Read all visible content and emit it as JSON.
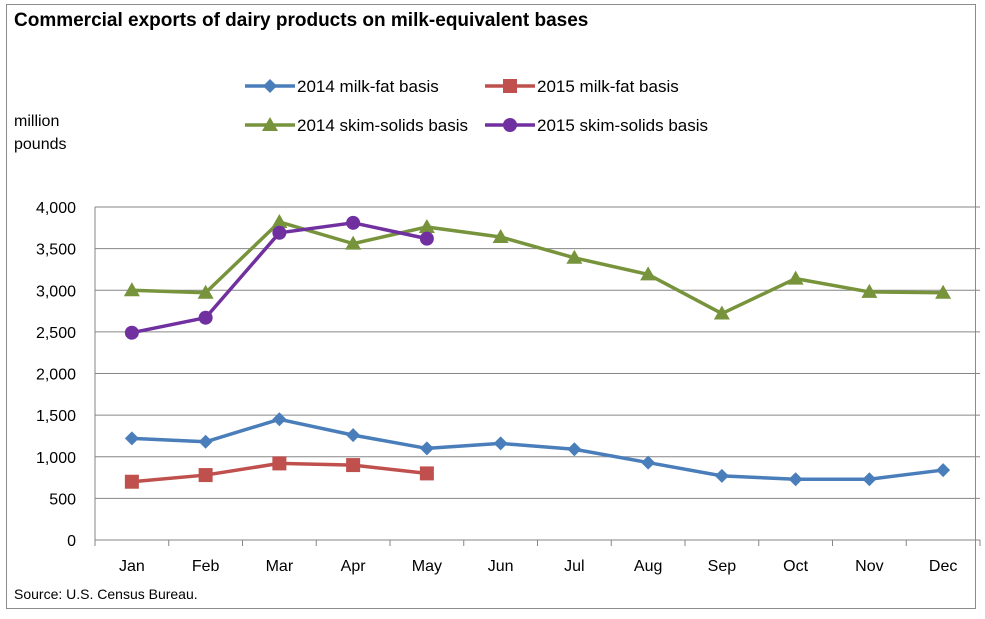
{
  "chart_data": {
    "type": "line",
    "title": "Commercial exports of dairy products on milk-equivalent bases",
    "ylabel_line1": "million",
    "ylabel_line2": "pounds",
    "source": "Source: U.S. Census Bureau.",
    "categories": [
      "Jan",
      "Feb",
      "Mar",
      "Apr",
      "May",
      "Jun",
      "Jul",
      "Aug",
      "Sep",
      "Oct",
      "Nov",
      "Dec"
    ],
    "ylim": [
      0,
      4000
    ],
    "yticks": [
      0,
      500,
      1000,
      1500,
      2000,
      2500,
      3000,
      3500,
      4000
    ],
    "ytick_labels": [
      "0",
      "500",
      "1,000",
      "1,500",
      "2,000",
      "2,500",
      "3,000",
      "3,500",
      "4,000"
    ],
    "grid": "horizontal",
    "legend_position": "top",
    "series": [
      {
        "name": "2014 milk-fat basis",
        "color": "#4a7ebb",
        "marker": "diamond",
        "values": [
          1220,
          1180,
          1450,
          1260,
          1100,
          1160,
          1090,
          930,
          770,
          730,
          730,
          840
        ]
      },
      {
        "name": "2015 milk-fat basis",
        "color": "#c0504d",
        "marker": "square",
        "values": [
          700,
          780,
          920,
          900,
          800,
          null,
          null,
          null,
          null,
          null,
          null,
          null
        ]
      },
      {
        "name": "2014 skim-solids basis",
        "color": "#77933c",
        "marker": "triangle",
        "values": [
          3000,
          2970,
          3820,
          3560,
          3760,
          3640,
          3390,
          3190,
          2720,
          3140,
          2980,
          2970
        ]
      },
      {
        "name": "2015 skim-solids basis",
        "color": "#7030a0",
        "marker": "circle",
        "values": [
          2490,
          2670,
          3690,
          3810,
          3620,
          null,
          null,
          null,
          null,
          null,
          null,
          null
        ]
      }
    ]
  }
}
